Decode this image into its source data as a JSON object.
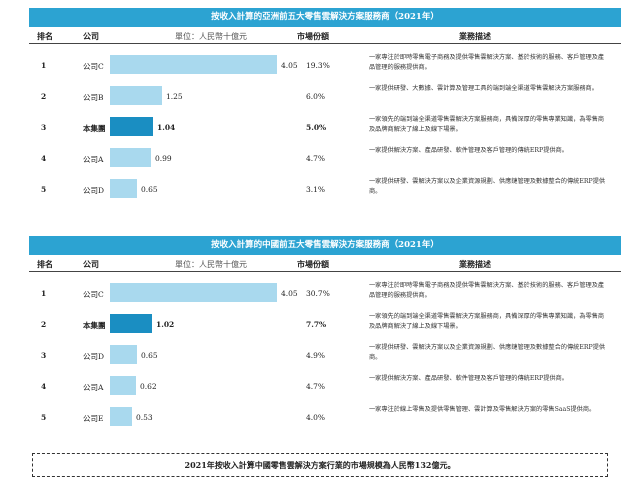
{
  "headers": {
    "rank": "排名",
    "company": "公司",
    "unit": "單位：人民幣十億元",
    "share": "市場份額",
    "desc": "業務描述"
  },
  "tables": [
    {
      "title": "按收入計算的亞洲前五大零售雲解決方案服務商（2021年）",
      "rows": [
        {
          "rank": "1",
          "company": "公司C",
          "value": "4.05",
          "share": "19.3%",
          "highlight": false,
          "desc": "一家專注於即時零售電子商務及提供零售雲解決方案、基於技術的服務、客戶管理及產品管理的服務提供商。"
        },
        {
          "rank": "2",
          "company": "公司B",
          "value": "1.25",
          "share": "6.0%",
          "highlight": false,
          "desc": "一家提供研發、大數據、雲計算及管理工具的端到端全渠道零售雲解決方案服務商。"
        },
        {
          "rank": "3",
          "company": "本集團",
          "value": "1.04",
          "share": "5.0%",
          "highlight": true,
          "desc": "一家領先的端到端全渠道零售雲解決方案服務商，具備深厚的零售專業知識，為零售商及品牌商解決了線上及線下場景。"
        },
        {
          "rank": "4",
          "company": "公司A",
          "value": "0.99",
          "share": "4.7%",
          "highlight": false,
          "desc": "一家提供解決方案、產品研發、軟件管理及客戶管理的傳統ERP提供商。"
        },
        {
          "rank": "5",
          "company": "公司D",
          "value": "0.65",
          "share": "3.1%",
          "highlight": false,
          "desc": "一家提供研發、雲解決方案以及企業資源規劃、供應鏈管理及數據整合的傳統ERP提供商。"
        }
      ]
    },
    {
      "title": "按收入計算的中國前五大零售雲解決方案服務商（2021年）",
      "rows": [
        {
          "rank": "1",
          "company": "公司C",
          "value": "4.05",
          "share": "30.7%",
          "highlight": false,
          "desc": "一家專注於即時零售電子商務及提供零售雲解決方案、基於技術的服務、客戶管理及產品管理的服務提供商。"
        },
        {
          "rank": "2",
          "company": "本集團",
          "value": "1.02",
          "share": "7.7%",
          "highlight": true,
          "desc": "一家領先的端到端全渠道零售雲解決方案服務商，具備深厚的零售專業知識，為零售商及品牌商解決了線上及線下場景。"
        },
        {
          "rank": "3",
          "company": "公司D",
          "value": "0.65",
          "share": "4.9%",
          "highlight": false,
          "desc": "一家提供研發、雲解決方案以及企業資源規劃、供應鏈管理及數據整合的傳統ERP提供商。"
        },
        {
          "rank": "4",
          "company": "公司A",
          "value": "0.62",
          "share": "4.7%",
          "highlight": false,
          "desc": "一家提供解決方案、產品研發、軟件管理及客戶管理的傳統ERP提供商。"
        },
        {
          "rank": "5",
          "company": "公司E",
          "value": "0.53",
          "share": "4.0%",
          "highlight": false,
          "desc": "一家專注於線上零售及提供零售管理、雲計算及零售解決方案的零售SaaS提供商。"
        }
      ]
    }
  ],
  "footer": "2021年按收入計算中國零售雲解決方案行業的市場規模為人民幣132億元。",
  "colors": {
    "title_bar": "#2ca3d2",
    "bar": "#a9d9ee",
    "bar_highlight": "#1a8ec2"
  }
}
